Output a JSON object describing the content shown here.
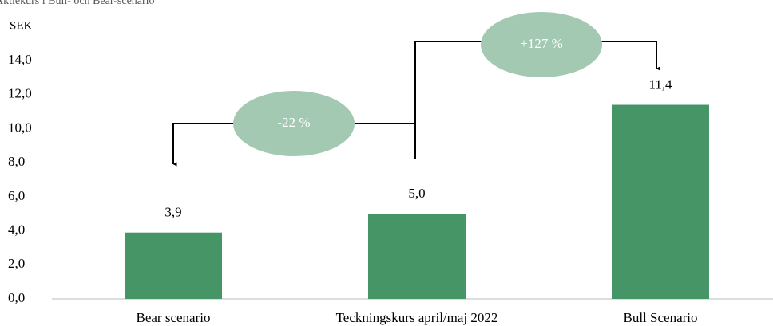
{
  "chart_data": {
    "type": "bar",
    "title": "Aktiekurs i Bull- och Bear-scenario",
    "y_axis_label": "SEK",
    "categories": [
      "Bear scenario",
      "Teckningskurs april/maj 2022",
      "Bull Scenario"
    ],
    "values": [
      3.9,
      5.0,
      11.4
    ],
    "value_labels": [
      "3,9",
      "5,0",
      "11,4"
    ],
    "color": "#459566",
    "annotations": [
      "-22 %",
      "+127 %"
    ],
    "annotation_color": "#a3c9b2",
    "ylim": [
      0,
      14
    ],
    "yticks": [
      {
        "value": 0,
        "label": "0,0"
      },
      {
        "value": 2,
        "label": "2,0"
      },
      {
        "value": 4,
        "label": "4,0"
      },
      {
        "value": 6,
        "label": "6,0"
      },
      {
        "value": 8,
        "label": "8,0"
      },
      {
        "value": 10,
        "label": "10,0"
      },
      {
        "value": 12,
        "label": "12,0"
      },
      {
        "value": 14,
        "label": "14,0"
      }
    ],
    "grid": false
  }
}
